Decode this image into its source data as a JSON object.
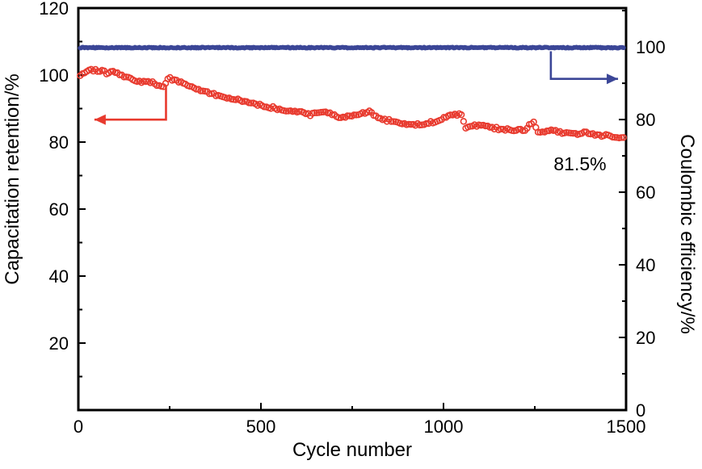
{
  "chart_data": {
    "type": "line",
    "title": "",
    "xlabel": "Cycle number",
    "ylabel_left": "Capacitation retention/%",
    "ylabel_right": "Coulombic efficiency/%",
    "xlim": [
      0,
      1500
    ],
    "ylim_left": [
      0,
      120
    ],
    "ylim_right": [
      0,
      110.7
    ],
    "x_ticks": [
      0,
      500,
      1000,
      1500
    ],
    "x_minor_step": 250,
    "y_ticks_left": [
      20,
      40,
      60,
      80,
      100,
      120
    ],
    "y_ticks_right": [
      0,
      20,
      40,
      60,
      80,
      100
    ],
    "y_minor_step": 10,
    "grid": false,
    "legend": "none",
    "annotation": {
      "text": "81.5%",
      "x_cycle": 1290,
      "y_left_value": 75
    },
    "colors": {
      "retention": "#e83a2e",
      "efficiency": "#3b4697",
      "axis": "#000000"
    },
    "series": [
      {
        "name": "Capacitance retention",
        "axis": "left",
        "color": "#e83a2e",
        "marker": "open-circle",
        "final_value": 81.5,
        "points": [
          [
            5,
            100.2
          ],
          [
            20,
            100.9
          ],
          [
            40,
            101.5
          ],
          [
            60,
            101.4
          ],
          [
            80,
            100.5
          ],
          [
            100,
            100.9
          ],
          [
            115,
            100.3
          ],
          [
            130,
            99.4
          ],
          [
            145,
            98.6
          ],
          [
            160,
            98.1
          ],
          [
            175,
            97.7
          ],
          [
            190,
            98.2
          ],
          [
            205,
            97.6
          ],
          [
            220,
            97.0
          ],
          [
            235,
            96.5
          ],
          [
            245,
            99.2
          ],
          [
            260,
            98.7
          ],
          [
            275,
            98.2
          ],
          [
            290,
            97.4
          ],
          [
            305,
            96.8
          ],
          [
            320,
            96.1
          ],
          [
            335,
            95.4
          ],
          [
            350,
            94.9
          ],
          [
            365,
            94.4
          ],
          [
            380,
            94.0
          ],
          [
            395,
            93.6
          ],
          [
            410,
            93.2
          ],
          [
            425,
            92.9
          ],
          [
            440,
            92.5
          ],
          [
            455,
            92.1
          ],
          [
            470,
            91.6
          ],
          [
            485,
            91.2
          ],
          [
            500,
            90.9
          ],
          [
            515,
            90.6
          ],
          [
            530,
            90.3
          ],
          [
            545,
            90.0
          ],
          [
            560,
            89.7
          ],
          [
            575,
            89.5
          ],
          [
            590,
            89.3
          ],
          [
            605,
            89.0
          ],
          [
            620,
            88.5
          ],
          [
            635,
            88.1
          ],
          [
            650,
            88.5
          ],
          [
            665,
            88.8
          ],
          [
            680,
            88.9
          ],
          [
            695,
            88.4
          ],
          [
            710,
            87.7
          ],
          [
            725,
            87.3
          ],
          [
            740,
            87.8
          ],
          [
            755,
            88.2
          ],
          [
            770,
            88.6
          ],
          [
            785,
            88.9
          ],
          [
            800,
            89.0
          ],
          [
            812,
            87.8
          ],
          [
            825,
            87.0
          ],
          [
            840,
            86.6
          ],
          [
            855,
            86.3
          ],
          [
            870,
            86.1
          ],
          [
            885,
            85.8
          ],
          [
            900,
            85.5
          ],
          [
            915,
            85.3
          ],
          [
            930,
            85.2
          ],
          [
            945,
            85.5
          ],
          [
            960,
            85.8
          ],
          [
            975,
            86.0
          ],
          [
            990,
            86.4
          ],
          [
            1005,
            87.4
          ],
          [
            1020,
            88.0
          ],
          [
            1040,
            88.2
          ],
          [
            1052,
            88.3
          ],
          [
            1058,
            84.4
          ],
          [
            1075,
            84.6
          ],
          [
            1090,
            84.9
          ],
          [
            1105,
            85.0
          ],
          [
            1120,
            84.7
          ],
          [
            1135,
            84.3
          ],
          [
            1150,
            84.0
          ],
          [
            1165,
            83.8
          ],
          [
            1180,
            83.6
          ],
          [
            1195,
            83.4
          ],
          [
            1210,
            83.5
          ],
          [
            1225,
            83.7
          ],
          [
            1238,
            85.6
          ],
          [
            1248,
            86.1
          ],
          [
            1258,
            83.3
          ],
          [
            1272,
            83.0
          ],
          [
            1286,
            83.2
          ],
          [
            1300,
            83.4
          ],
          [
            1315,
            83.1
          ],
          [
            1330,
            82.8
          ],
          [
            1345,
            82.5
          ],
          [
            1360,
            82.4
          ],
          [
            1375,
            82.7
          ],
          [
            1390,
            82.7
          ],
          [
            1405,
            82.4
          ],
          [
            1420,
            82.2
          ],
          [
            1435,
            82.0
          ],
          [
            1450,
            81.9
          ],
          [
            1465,
            81.8
          ],
          [
            1480,
            81.6
          ],
          [
            1495,
            81.5
          ]
        ]
      },
      {
        "name": "Coulombic efficiency",
        "axis": "right",
        "color": "#3b4697",
        "marker": "filled-circle",
        "final_value": 99.8,
        "points": [
          [
            5,
            99.8
          ],
          [
            1495,
            99.8
          ]
        ]
      }
    ],
    "arrows": [
      {
        "target": "retention",
        "color": "#e83a2e",
        "axis": "left",
        "dir": "left",
        "elbow": [
          [
            240,
            96.8
          ],
          [
            240,
            86.7
          ],
          [
            44,
            86.7
          ]
        ]
      },
      {
        "target": "efficiency",
        "color": "#3b4697",
        "axis": "right",
        "dir": "right",
        "elbow": [
          [
            1294,
            98.8
          ],
          [
            1294,
            91.2
          ],
          [
            1478,
            91.2
          ]
        ]
      }
    ]
  }
}
